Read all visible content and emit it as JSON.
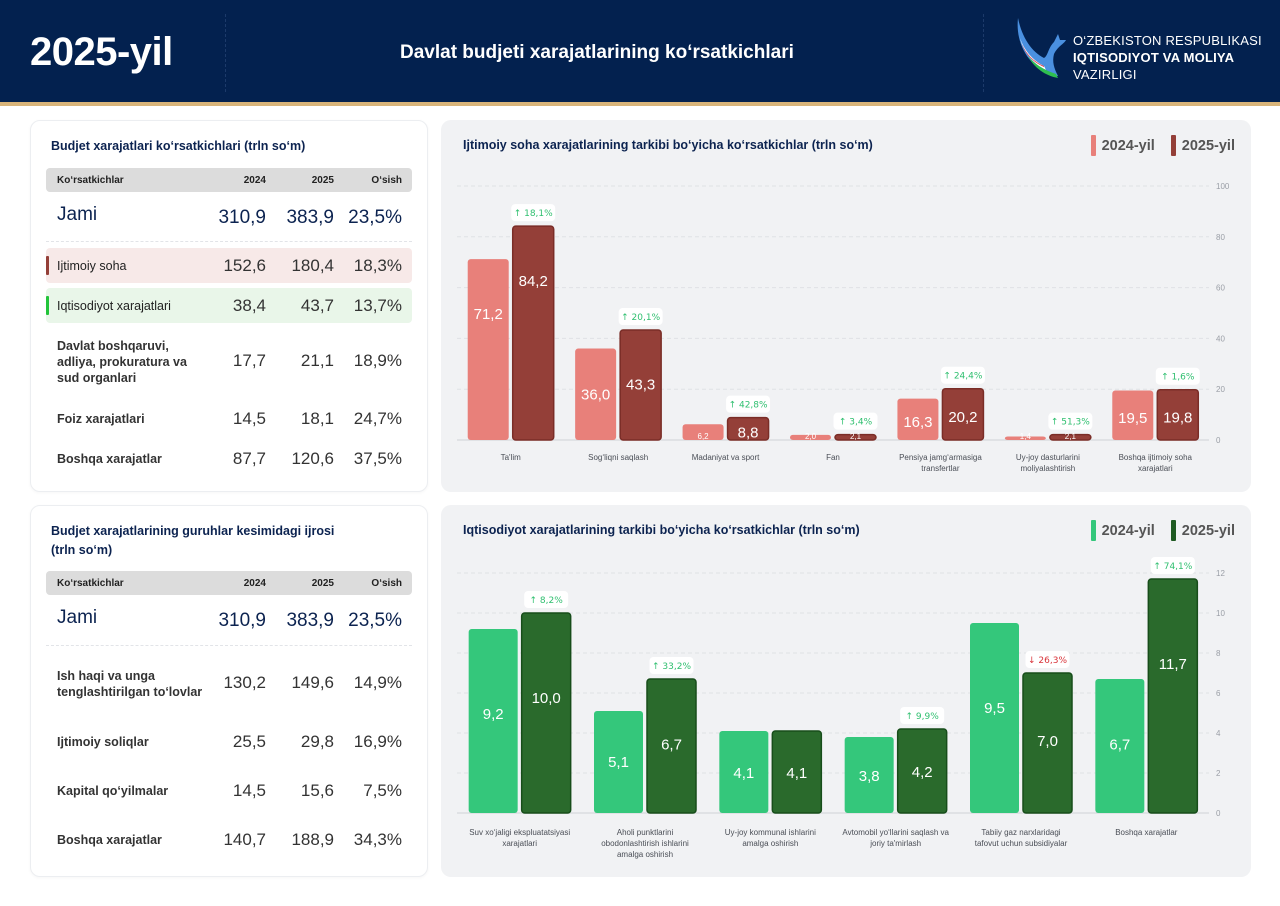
{
  "header": {
    "year": "2025-yil",
    "title": "Davlat budjeti xarajatlarining ko‘rsatkichlari",
    "org_line1": "O‘ZBEKISTON RESPUBLIKASI",
    "org_line2": "IQTISODIYOT VA MOLIYA",
    "org_line3": "VAZIRLIGI",
    "logo_icon": "ministry-bird-logo-icon"
  },
  "table1": {
    "title": "Budjet xarajatlari ko‘rsatkichlari (trln so‘m)",
    "columns": [
      "Ko‘rsatkichlar",
      "2024",
      "2025",
      "O‘sish"
    ],
    "rows": [
      {
        "label": "Jami",
        "v2024": "310,9",
        "v2025": "383,9",
        "growth": "23,5%"
      },
      {
        "label": "Ijtimoiy soha",
        "v2024": "152,6",
        "v2025": "180,4",
        "growth": "18,3%"
      },
      {
        "label": "Iqtisodiyot xarajatlari",
        "v2024": "38,4",
        "v2025": "43,7",
        "growth": "13,7%"
      },
      {
        "label": "Davlat boshqaruvi,\nadliya, prokuratura va\nsud organlari",
        "v2024": "17,7",
        "v2025": "21,1",
        "growth": "18,9%"
      },
      {
        "label": "Foiz xarajatlari",
        "v2024": "14,5",
        "v2025": "18,1",
        "growth": "24,7%"
      },
      {
        "label": "Boshqa xarajatlar",
        "v2024": "87,7",
        "v2025": "120,6",
        "growth": "37,5%"
      }
    ]
  },
  "table2": {
    "title": "Budjet xarajatlarining guruhlar kesimidagi ijrosi\n(trln so‘m)",
    "columns": [
      "Ko‘rsatkichlar",
      "2024",
      "2025",
      "O‘sish"
    ],
    "rows": [
      {
        "label": "Jami",
        "v2024": "310,9",
        "v2025": "383,9",
        "growth": "23,5%"
      },
      {
        "label": "Ish haqi va unga\ntenglashtirilgan to‘lovlar",
        "v2024": "130,2",
        "v2025": "149,6",
        "growth": "14,9%"
      },
      {
        "label": "Ijtimoiy soliqlar",
        "v2024": "25,5",
        "v2025": "29,8",
        "growth": "16,9%"
      },
      {
        "label": "Kapital qo‘yilmalar",
        "v2024": "14,5",
        "v2025": "15,6",
        "growth": "7,5%"
      },
      {
        "label": "Boshqa xarajatlar",
        "v2024": "140,7",
        "v2025": "188,9",
        "growth": "34,3%"
      }
    ]
  },
  "colors": {
    "social_2024": "#e8807a",
    "social_2025": "#943f38",
    "econ_2024": "#34c77b",
    "econ_2025": "#2a6a2c",
    "up": "#2fbf6f",
    "down": "#d9343a",
    "header_bg": "#03214f"
  },
  "chart_data": [
    {
      "type": "bar",
      "title": "Ijtimoiy soha xarajatlarining tarkibi bo‘yicha ko‘rsatkichlar (trln so‘m)",
      "categories": [
        "Ta'lim",
        "Sog‘liqni saqlash",
        "Madaniyat va sport",
        "Fan",
        "Pensiya jamg‘armasiga\ntransfertlar",
        "Uy-joy dasturlarini\nmoliyalashtirish",
        "Boshqa ijtimoiy soha\nxarajatlari"
      ],
      "series": [
        {
          "name": "2024-yil",
          "values": [
            71.2,
            36.0,
            6.2,
            2.0,
            16.3,
            1.4,
            19.5
          ],
          "labels": [
            "71,2",
            "36,0",
            "6,2",
            "2,0",
            "16,3",
            "1,4",
            "19,5"
          ]
        },
        {
          "name": "2025-yil",
          "values": [
            84.2,
            43.3,
            8.8,
            2.1,
            20.2,
            2.1,
            19.8
          ],
          "labels": [
            "84,2",
            "43,3",
            "8,8",
            "2,1",
            "20,2",
            "2,1",
            "19,8"
          ]
        }
      ],
      "growth": [
        {
          "dir": "up",
          "text": "18,1%"
        },
        {
          "dir": "up",
          "text": "20,1%"
        },
        {
          "dir": "up",
          "text": "42,8%"
        },
        {
          "dir": "up",
          "text": "3,4%"
        },
        {
          "dir": "up",
          "text": "24,4%"
        },
        {
          "dir": "up",
          "text": "51,3%"
        },
        {
          "dir": "up",
          "text": "1,6%"
        }
      ],
      "yticks": [
        0,
        20,
        40,
        60,
        80,
        100
      ],
      "ylim": [
        0,
        100
      ],
      "axis_position": "right",
      "grid": true,
      "legend": "top-right",
      "xlabel": "",
      "ylabel": ""
    },
    {
      "type": "bar",
      "title": "Iqtisodiyot xarajatlarining tarkibi bo‘yicha ko‘rsatkichlar (trln so‘m)",
      "categories": [
        "Suv xo‘jaligi ekspluatatsiyasi\nxarajatlari",
        "Aholi punktlarini\nobodonlashtirish ishlarini\namalga oshirish",
        "Uy-joy kommunal ishlarini\namalga oshirish",
        "Avtomobil yo‘llarini saqlash va\njoriy ta'mirlash",
        "Tabiiy gaz narxlaridagi\ntafovut uchun subsidiyalar",
        "Boshqa xarajatlar"
      ],
      "series": [
        {
          "name": "2024-yil",
          "values": [
            9.2,
            5.1,
            4.1,
            3.8,
            9.5,
            6.7
          ],
          "labels": [
            "9,2",
            "5,1",
            "4,1",
            "3,8",
            "9,5",
            "6,7"
          ]
        },
        {
          "name": "2025-yil",
          "values": [
            10.0,
            6.7,
            4.1,
            4.2,
            7.0,
            11.7
          ],
          "labels": [
            "10,0",
            "6,7",
            "4,1",
            "4,2",
            "7,0",
            "11,7"
          ]
        }
      ],
      "growth": [
        {
          "dir": "up",
          "text": "8,2%"
        },
        {
          "dir": "up",
          "text": "33,2%"
        },
        null,
        {
          "dir": "up",
          "text": "9,9%"
        },
        {
          "dir": "down",
          "text": "26,3%"
        },
        {
          "dir": "up",
          "text": "74,1%"
        }
      ],
      "yticks": [
        0,
        2,
        4,
        6,
        8,
        10,
        12
      ],
      "ylim": [
        0,
        12.5
      ],
      "axis_position": "right",
      "grid": true,
      "legend": "top-right",
      "xlabel": "",
      "ylabel": ""
    }
  ]
}
